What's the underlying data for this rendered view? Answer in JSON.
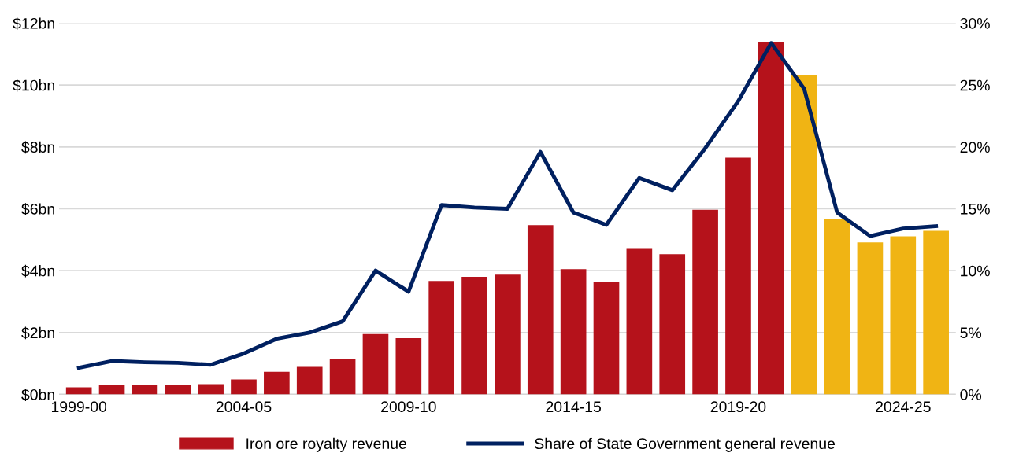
{
  "chart_data": {
    "type": "bar",
    "categories": [
      "1999-00",
      null,
      null,
      null,
      null,
      "2004-05",
      null,
      null,
      null,
      null,
      "2009-10",
      null,
      null,
      null,
      null,
      "2014-15",
      null,
      null,
      null,
      null,
      "2019-20",
      null,
      null,
      null,
      null,
      "2024-25",
      null
    ],
    "series": [
      {
        "name": "Iron ore royalty revenue",
        "color": "#b5121b",
        "colors": [
          "#b5121b",
          "#b5121b",
          "#b5121b",
          "#b5121b",
          "#b5121b",
          "#b5121b",
          "#b5121b",
          "#b5121b",
          "#b5121b",
          "#b5121b",
          "#b5121b",
          "#b5121b",
          "#b5121b",
          "#b5121b",
          "#b5121b",
          "#b5121b",
          "#b5121b",
          "#b5121b",
          "#b5121b",
          "#b5121b",
          "#b5121b",
          "#b5121b",
          "#f0b414",
          "#f0b414",
          "#f0b414",
          "#f0b414",
          "#f0b414"
        ],
        "values": [
          0.23,
          0.3,
          0.3,
          0.3,
          0.33,
          0.48,
          0.73,
          0.89,
          1.14,
          1.95,
          1.82,
          3.67,
          3.8,
          3.87,
          5.47,
          4.05,
          3.62,
          4.73,
          4.53,
          5.97,
          7.65,
          11.39,
          10.33,
          5.67,
          4.91,
          5.11,
          5.29
        ]
      },
      {
        "name": "Share of State Government general revenue",
        "type": "line",
        "axis": "y2",
        "color": "#002060",
        "values": [
          2.15,
          2.7,
          2.6,
          2.55,
          2.4,
          3.3,
          4.5,
          5.0,
          5.9,
          10.0,
          8.3,
          15.3,
          15.1,
          15.0,
          19.6,
          14.7,
          13.7,
          17.5,
          16.5,
          19.9,
          23.7,
          28.4,
          24.7,
          14.7,
          12.8,
          13.4,
          13.6
        ]
      }
    ],
    "ylim": [
      0,
      12
    ],
    "yticks": [
      {
        "value": 0,
        "label": "$0bn"
      },
      {
        "value": 2,
        "label": "$2bn"
      },
      {
        "value": 4,
        "label": "$4bn"
      },
      {
        "value": 6,
        "label": "$6bn"
      },
      {
        "value": 8,
        "label": "$8bn"
      },
      {
        "value": 10,
        "label": "$10bn"
      },
      {
        "value": 12,
        "label": "$12bn"
      }
    ],
    "y2lim": [
      0,
      30
    ],
    "y2ticks": [
      {
        "value": 0,
        "label": "0%"
      },
      {
        "value": 5,
        "label": "5%"
      },
      {
        "value": 10,
        "label": "10%"
      },
      {
        "value": 15,
        "label": "15%"
      },
      {
        "value": 20,
        "label": "20%"
      },
      {
        "value": 25,
        "label": "25%"
      },
      {
        "value": 30,
        "label": "30%"
      }
    ],
    "grid": "y",
    "legend": "bottom",
    "marker": "none",
    "line_style": "solid"
  }
}
